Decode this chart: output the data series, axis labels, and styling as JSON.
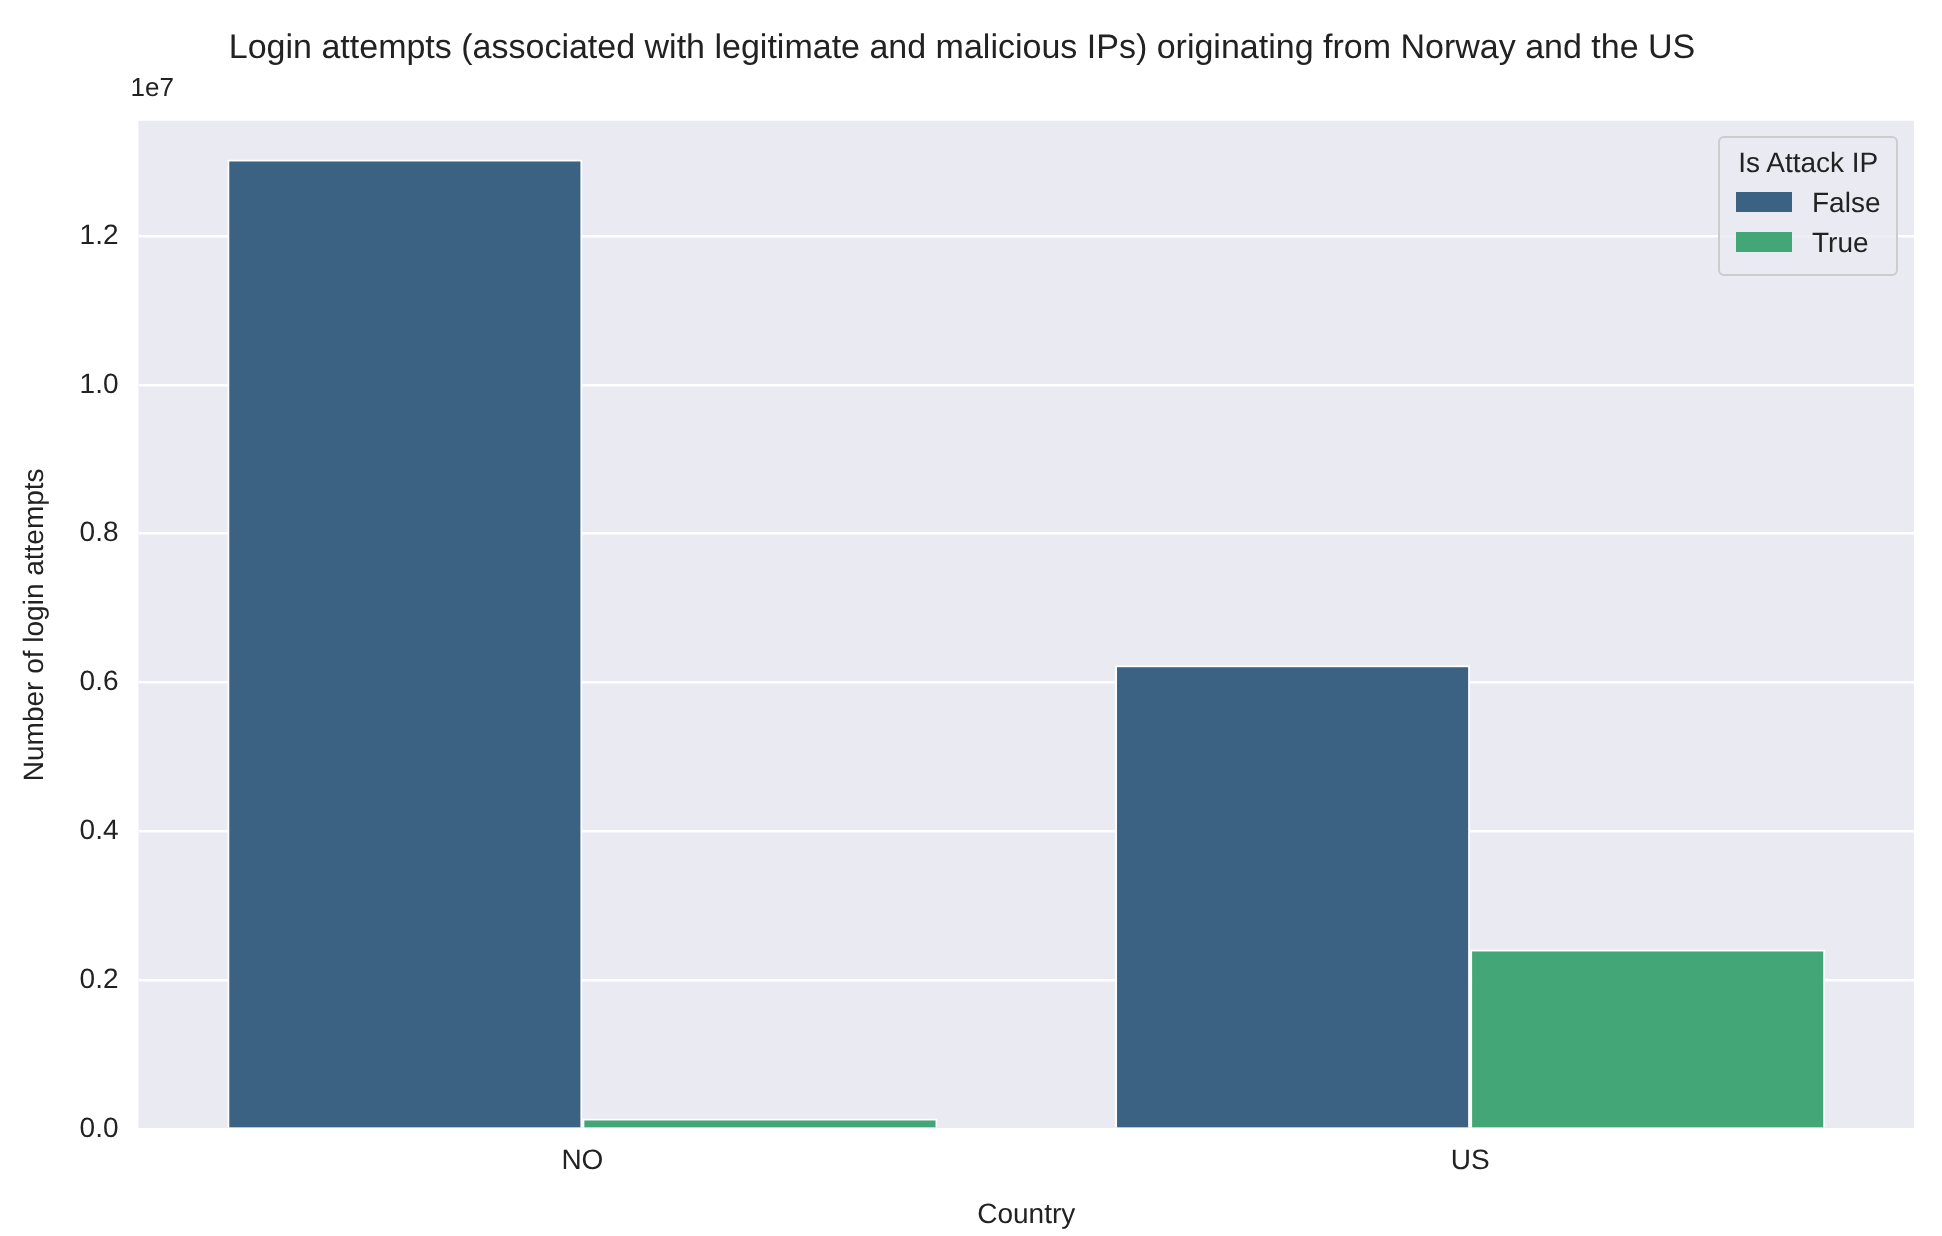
{
  "chart_data": {
    "type": "bar",
    "title": "Login attempts (associated with legitimate and malicious IPs) originating from Norway and the US",
    "xlabel": "Country",
    "ylabel": "Number of login attempts",
    "legend_title": "Is Attack IP",
    "categories": [
      "NO",
      "US"
    ],
    "series": [
      {
        "name": "False",
        "color": "#3b6282",
        "values": [
          1.303,
          0.623
        ]
      },
      {
        "name": "True",
        "color": "#42a676",
        "values": [
          0.014,
          0.241
        ]
      }
    ],
    "ylim": [
      0,
      1.355
    ],
    "yticks": [
      {
        "value": 0,
        "label": "0.0"
      },
      {
        "value": 0.2,
        "label": "0.2"
      },
      {
        "value": 0.4,
        "label": "0.4"
      },
      {
        "value": 0.6,
        "label": "0.6"
      },
      {
        "value": 0.8,
        "label": "0.8"
      },
      {
        "value": 1,
        "label": "1.0"
      },
      {
        "value": 1.2,
        "label": "1.2"
      }
    ],
    "annotations": [
      "1e7"
    ],
    "grid": "y",
    "legend": "top right"
  }
}
